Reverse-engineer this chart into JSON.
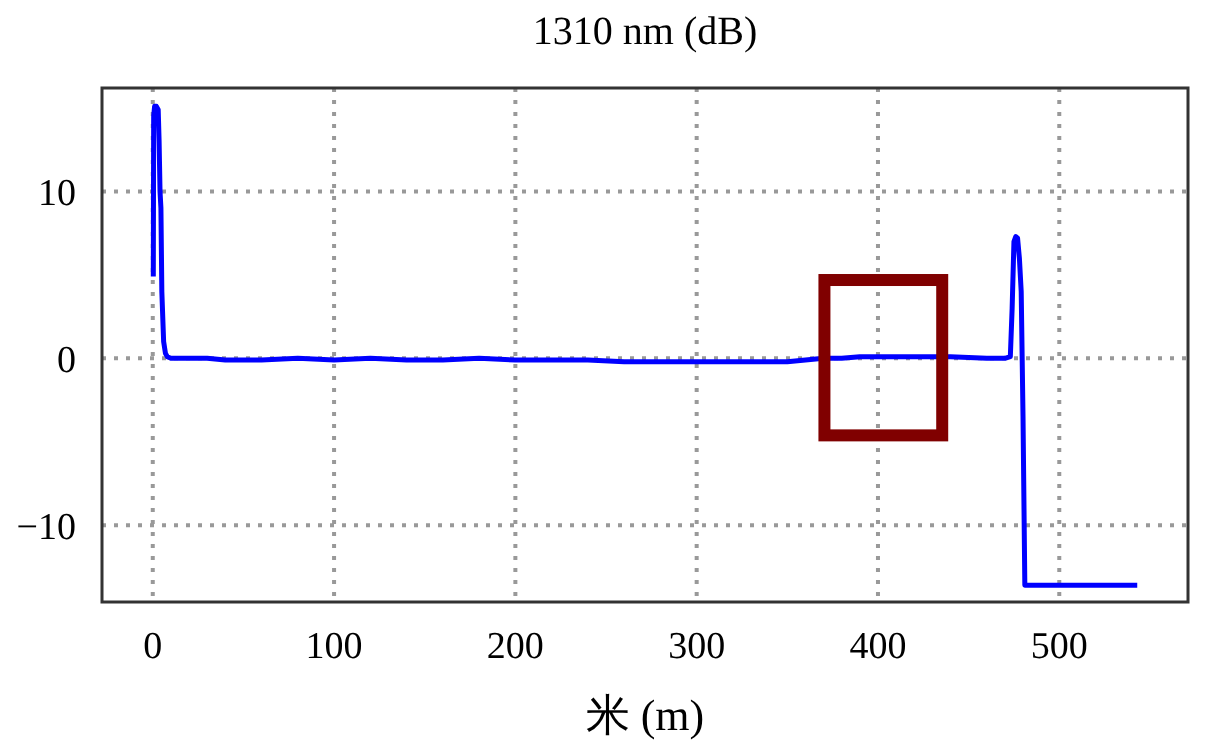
{
  "chart_data": {
    "type": "line",
    "title": "1310 nm (dB)",
    "xlabel": "米 (m)",
    "grid": true,
    "xlim": [
      -28,
      571
    ],
    "ylim": [
      -14.6,
      16.2
    ],
    "xticks": [
      0,
      100,
      200,
      300,
      400,
      500
    ],
    "yticks": [
      -10,
      0,
      10
    ],
    "series": [
      {
        "color": "#0000ff",
        "x": [
          0.3,
          0.5,
          1,
          2,
          3,
          3.5,
          4,
          4.5,
          5,
          6,
          7,
          8,
          10,
          15,
          20,
          30,
          40,
          50,
          60,
          80,
          100,
          120,
          140,
          160,
          180,
          200,
          220,
          240,
          260,
          280,
          300,
          320,
          340,
          350,
          360,
          370,
          380,
          390,
          400,
          420,
          440,
          460,
          470,
          473,
          474,
          475,
          476,
          477,
          478,
          479,
          480,
          481,
          482,
          483,
          490,
          500,
          520,
          543
        ],
        "values": [
          4.9,
          14.5,
          15.1,
          15.1,
          14.9,
          13,
          10,
          9,
          4,
          1,
          0.3,
          0.1,
          0,
          0,
          0,
          0,
          -0.1,
          -0.1,
          -0.1,
          0,
          -0.1,
          0,
          -0.1,
          -0.1,
          0,
          -0.1,
          -0.1,
          -0.1,
          -0.2,
          -0.2,
          -0.2,
          -0.2,
          -0.2,
          -0.2,
          -0.1,
          0,
          0,
          0.1,
          0.1,
          0.1,
          0.1,
          0,
          0,
          0.1,
          3,
          7,
          7.3,
          7.2,
          6,
          4,
          -3.5,
          -13.6,
          -13.6,
          -13.6,
          -13.6,
          -13.6,
          -13.6,
          -13.6
        ]
      }
    ]
  }
}
